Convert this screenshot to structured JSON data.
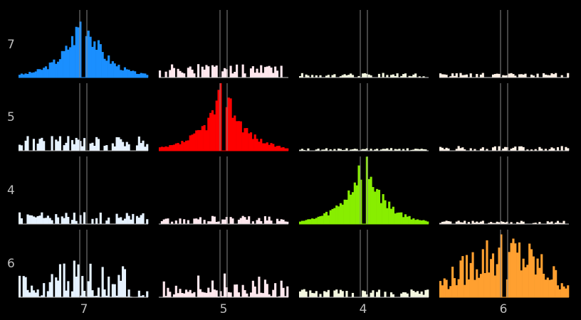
{
  "chart_data": {
    "type": "bar",
    "description_free": true,
    "row_labels": [
      "7",
      "5",
      "4",
      "6"
    ],
    "col_labels": [
      "7",
      "5",
      "4",
      "6"
    ],
    "colors": {
      "diagonal": [
        "#1a8fff",
        "#ff0000",
        "#88ee00",
        "#ffa030"
      ],
      "offdiag": {
        "0": "#e6f2ff",
        "1": "#ffe8ee",
        "2": "#f4f7e0",
        "3": "#fff1e6"
      },
      "divider": "#888888",
      "baseline": "#cccccc"
    },
    "panels": [
      [
        {
          "scale": 1.0,
          "shape": "peak",
          "seed": 3
        },
        {
          "scale": 0.22,
          "shape": "flat",
          "seed": 11
        },
        {
          "scale": 0.07,
          "shape": "flat",
          "seed": 17
        },
        {
          "scale": 0.07,
          "shape": "flat",
          "seed": 23
        }
      ],
      [
        {
          "scale": 0.22,
          "shape": "flat",
          "seed": 31
        },
        {
          "scale": 1.0,
          "shape": "peak",
          "seed": 37
        },
        {
          "scale": 0.04,
          "shape": "flat",
          "seed": 41
        },
        {
          "scale": 0.07,
          "shape": "flat",
          "seed": 43
        }
      ],
      [
        {
          "scale": 0.18,
          "shape": "flat",
          "seed": 47
        },
        {
          "scale": 0.12,
          "shape": "flat",
          "seed": 53
        },
        {
          "scale": 1.0,
          "shape": "peak",
          "seed": 59
        },
        {
          "scale": 0.05,
          "shape": "flat",
          "seed": 61
        }
      ],
      [
        {
          "scale": 0.62,
          "shape": "noisy",
          "seed": 67
        },
        {
          "scale": 0.38,
          "shape": "noisy",
          "seed": 71
        },
        {
          "scale": 0.12,
          "shape": "flat",
          "seed": 73
        },
        {
          "scale": 1.0,
          "shape": "wide",
          "seed": 79
        }
      ]
    ],
    "bins": 64
  }
}
